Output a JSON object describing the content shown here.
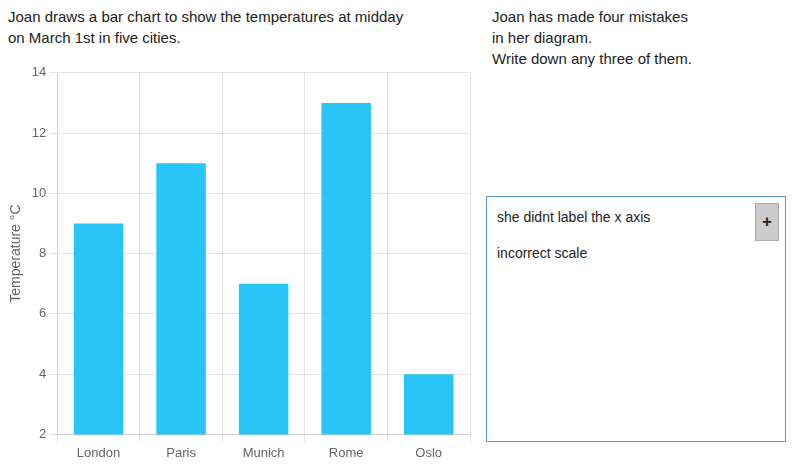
{
  "chart_data": {
    "type": "bar",
    "title": "Joan draws a bar chart to show the temperatures at midday\non March 1st in five cities.",
    "y_label": "Temperature °C",
    "categories": [
      "London",
      "Paris",
      "Munich",
      "Rome",
      "Oslo"
    ],
    "values": [
      9,
      11,
      7,
      13,
      4
    ],
    "color": "#29C5F6",
    "ylim": [
      2,
      14
    ],
    "yticks": [
      2,
      4,
      6,
      8,
      10,
      12,
      14
    ],
    "grid": true,
    "annotations": [
      "Joan has made four mistakes\nin her diagram.\nWrite down any three of them.",
      "she didnt label the x axis",
      "incorrect scale",
      "+"
    ]
  }
}
